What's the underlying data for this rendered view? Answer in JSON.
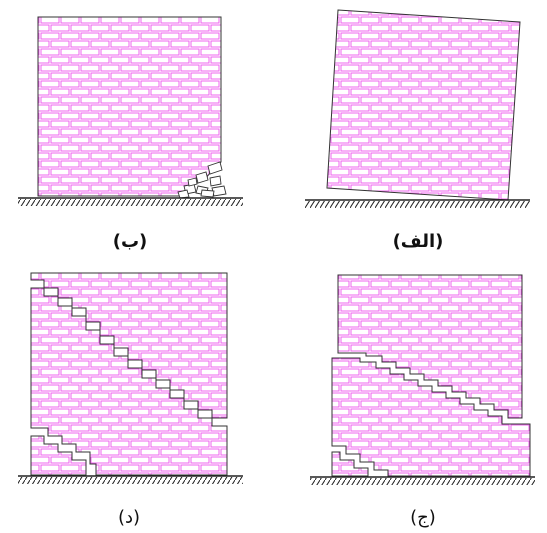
{
  "panels": {
    "alef": {
      "label": "(الف)"
    },
    "be": {
      "label": "(ب)"
    },
    "jim": {
      "label": "(ج)"
    },
    "dal": {
      "label": "(د)"
    }
  },
  "colors": {
    "brick": "#ee55ee",
    "outline": "#333333",
    "ground": "#222222"
  }
}
